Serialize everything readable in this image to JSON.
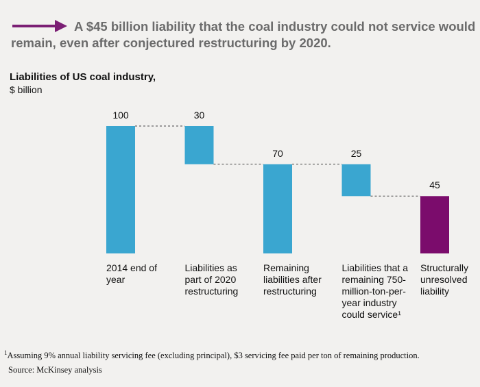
{
  "chart_data": {
    "type": "waterfall",
    "headline": "A $45 billion liability that the coal industry could not service would remain, even after conjectured restructuring by 2020.",
    "title": "Liabilities of US coal industry,",
    "subtitle": "$ billion",
    "categories": [
      "2014 end of year",
      "Liabilities as part of 2020 restructuring",
      "Remaining liabilities after restructuring",
      "Liabilities that a remaining 750-million-ton-per-year industry could service¹",
      "Structurally unresolved liability"
    ],
    "values": [
      100,
      30,
      70,
      25,
      45
    ],
    "measures": [
      "total",
      "decrease",
      "total",
      "decrease",
      "total"
    ],
    "colors": [
      "#3aa6d0",
      "#3aa6d0",
      "#3aa6d0",
      "#3aa6d0",
      "#7b0c6c"
    ],
    "footnote": {
      "marker": "1",
      "text": "Assuming 9% annual liability servicing fee (excluding principal), $3 servicing fee paid per ton of remaining production."
    },
    "source": "Source: McKinsey analysis"
  }
}
